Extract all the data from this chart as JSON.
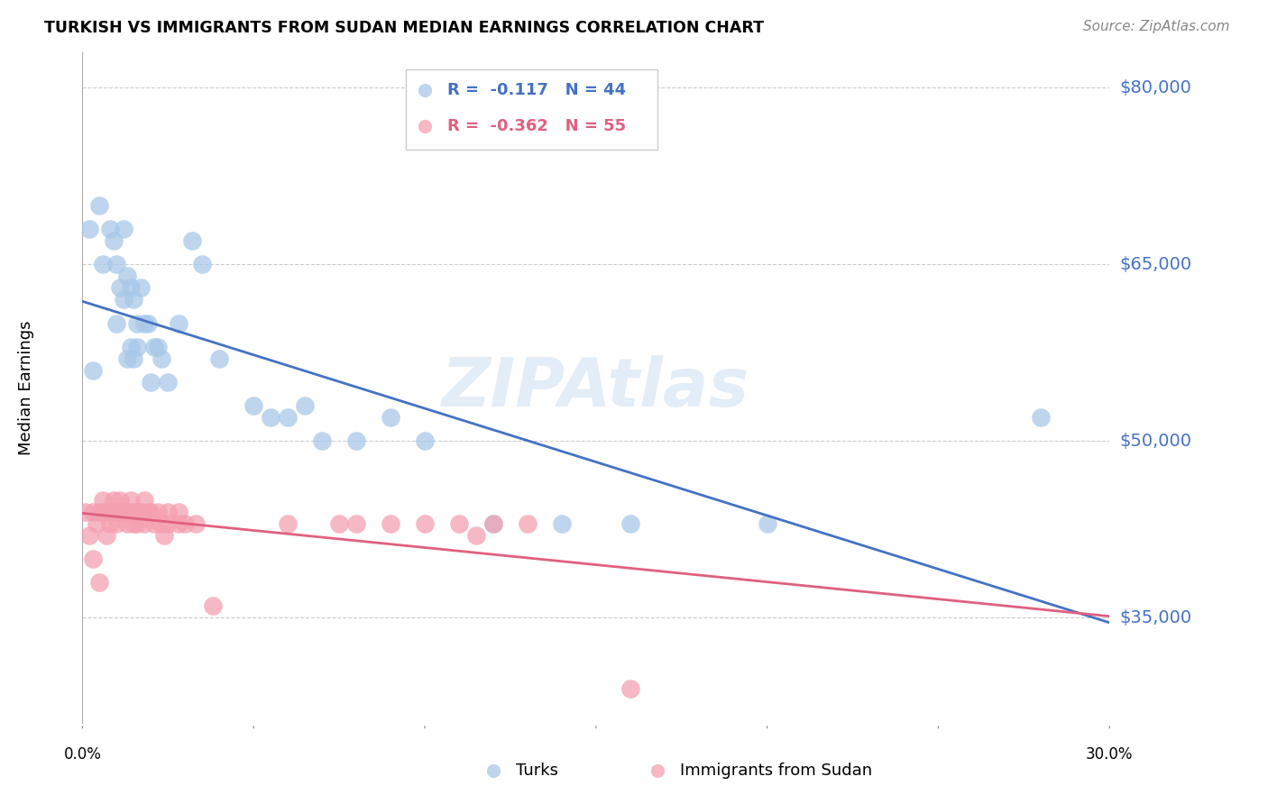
{
  "title": "TURKISH VS IMMIGRANTS FROM SUDAN MEDIAN EARNINGS CORRELATION CHART",
  "source": "Source: ZipAtlas.com",
  "ylabel": "Median Earnings",
  "y_ticks": [
    35000,
    50000,
    65000,
    80000
  ],
  "y_tick_labels": [
    "$35,000",
    "$50,000",
    "$65,000",
    "$80,000"
  ],
  "x_min": 0.0,
  "x_max": 0.3,
  "y_min": 26000,
  "y_max": 83000,
  "blue_color": "#A8C8E8",
  "pink_color": "#F4A0B0",
  "blue_line_color": "#4472C4",
  "pink_line_color": "#E06080",
  "legend_r_blue": "-0.117",
  "legend_n_blue": "44",
  "legend_r_pink": "-0.362",
  "legend_n_pink": "55",
  "legend_label_blue": "Turks",
  "legend_label_pink": "Immigrants from Sudan",
  "watermark": "ZIPAtlas",
  "blue_x": [
    0.002,
    0.003,
    0.005,
    0.006,
    0.008,
    0.009,
    0.01,
    0.01,
    0.011,
    0.012,
    0.012,
    0.013,
    0.013,
    0.014,
    0.014,
    0.015,
    0.015,
    0.016,
    0.016,
    0.017,
    0.018,
    0.019,
    0.02,
    0.021,
    0.022,
    0.023,
    0.025,
    0.028,
    0.032,
    0.035,
    0.04,
    0.05,
    0.055,
    0.06,
    0.065,
    0.07,
    0.08,
    0.09,
    0.1,
    0.12,
    0.14,
    0.16,
    0.2,
    0.28
  ],
  "blue_y": [
    68000,
    56000,
    70000,
    65000,
    68000,
    67000,
    65000,
    60000,
    63000,
    68000,
    62000,
    64000,
    57000,
    63000,
    58000,
    62000,
    57000,
    60000,
    58000,
    63000,
    60000,
    60000,
    55000,
    58000,
    58000,
    57000,
    55000,
    60000,
    67000,
    65000,
    57000,
    53000,
    52000,
    52000,
    53000,
    50000,
    50000,
    52000,
    50000,
    43000,
    43000,
    43000,
    43000,
    52000
  ],
  "pink_x": [
    0.001,
    0.002,
    0.003,
    0.003,
    0.004,
    0.005,
    0.005,
    0.006,
    0.006,
    0.007,
    0.007,
    0.008,
    0.008,
    0.009,
    0.009,
    0.01,
    0.01,
    0.011,
    0.011,
    0.012,
    0.012,
    0.013,
    0.013,
    0.014,
    0.014,
    0.015,
    0.015,
    0.016,
    0.016,
    0.017,
    0.018,
    0.018,
    0.019,
    0.02,
    0.021,
    0.022,
    0.023,
    0.024,
    0.025,
    0.025,
    0.028,
    0.028,
    0.03,
    0.033,
    0.038,
    0.06,
    0.075,
    0.08,
    0.09,
    0.1,
    0.11,
    0.115,
    0.12,
    0.13,
    0.16
  ],
  "pink_y": [
    44000,
    42000,
    40000,
    44000,
    43000,
    44000,
    38000,
    45000,
    44000,
    44000,
    42000,
    43000,
    44000,
    45000,
    44000,
    44000,
    43000,
    45000,
    44000,
    44000,
    44000,
    43000,
    44000,
    44000,
    45000,
    44000,
    43000,
    43000,
    44000,
    44000,
    45000,
    43000,
    44000,
    44000,
    43000,
    44000,
    43000,
    42000,
    43000,
    44000,
    44000,
    43000,
    43000,
    43000,
    36000,
    43000,
    43000,
    43000,
    43000,
    43000,
    43000,
    42000,
    43000,
    43000,
    29000
  ]
}
